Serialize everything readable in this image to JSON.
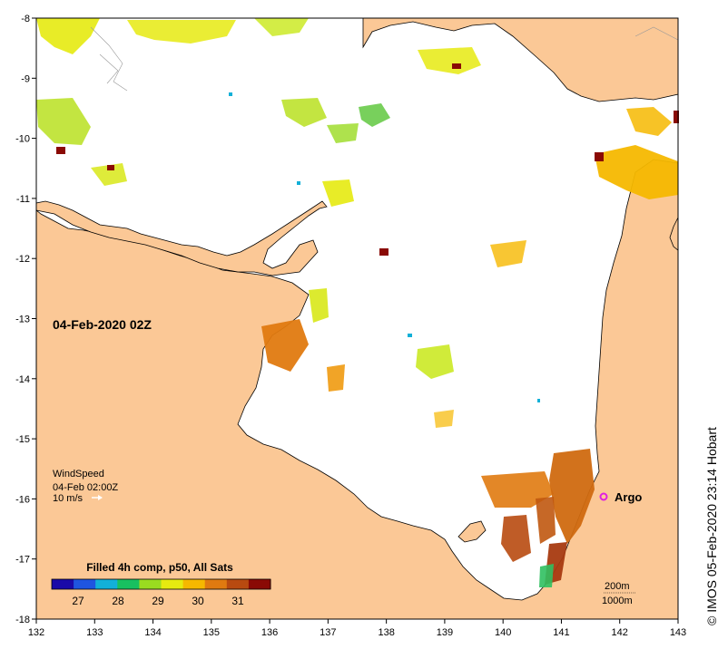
{
  "map": {
    "date_label": "04-Feb-2020 02Z",
    "wind": {
      "title": "WindSpeed",
      "time": "04-Feb 02:00Z",
      "scale": "10 m/s"
    },
    "colorbar": {
      "title": "Filled 4h comp, p50, All Sats",
      "ticks": [
        "27",
        "28",
        "29",
        "30",
        "31"
      ],
      "colors": [
        "#1a0aa8",
        "#1f55e0",
        "#12b0d8",
        "#18c060",
        "#9adb20",
        "#e6ea10",
        "#f6b800",
        "#e07a10",
        "#b84a10",
        "#8a0a05"
      ]
    },
    "contours": {
      "shallow": "200m",
      "deep": "1000m"
    },
    "argo_label": "Argo",
    "copyright": "© IMOS 05-Feb-2020 23:14 Hobart",
    "x_ticks": [
      "132",
      "133",
      "134",
      "135",
      "136",
      "137",
      "138",
      "139",
      "140",
      "141",
      "142",
      "143"
    ],
    "y_ticks": [
      "-8",
      "-9",
      "-10",
      "-11",
      "-12",
      "-13",
      "-14",
      "-15",
      "-16",
      "-17",
      "-18"
    ],
    "colors": {
      "land": "#fbc896",
      "ocean": "#ffffff",
      "argo": "#e020e0"
    }
  }
}
